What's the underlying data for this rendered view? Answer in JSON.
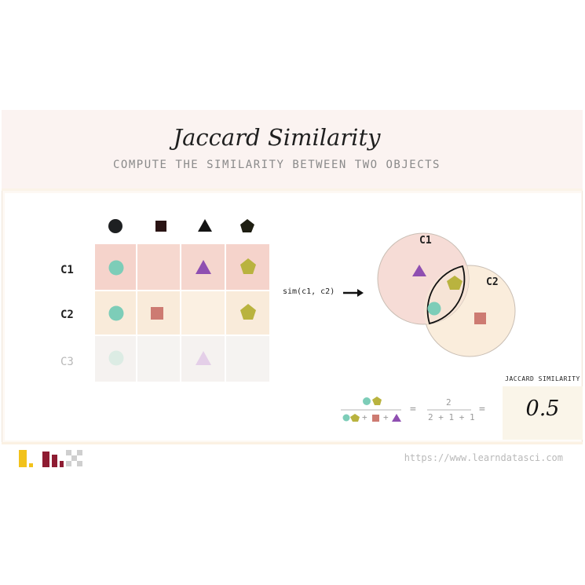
{
  "header": {
    "title": "Jaccard Similarity",
    "subtitle": "COMPUTE THE SIMILARITY BETWEEN TWO OBJECTS"
  },
  "table": {
    "column_symbols": [
      "circle-icon",
      "square-icon",
      "triangle-icon",
      "pentagon-icon"
    ],
    "rows": [
      {
        "label": "C1",
        "items": [
          "circle",
          "",
          "triangle",
          "pentagon"
        ]
      },
      {
        "label": "C2",
        "items": [
          "circle",
          "square",
          "",
          "pentagon"
        ]
      },
      {
        "label": "C3",
        "items": [
          "circle",
          "",
          "triangle",
          ""
        ]
      }
    ]
  },
  "similarity": {
    "expression": "sim(c1, c2)"
  },
  "venn": {
    "left_label": "C1",
    "right_label": "C2"
  },
  "formula": {
    "equals": "=",
    "plus": "+",
    "numerator_value": "2",
    "denominator_value": "2 + 1 + 1"
  },
  "result": {
    "label": "JACCARD SIMILARITY",
    "value": "0.5"
  },
  "footer": {
    "url": "https://www.learndatasci.com"
  },
  "colors": {
    "circle": "#7dcdb8",
    "square": "#cd7b72",
    "triangle": "#8f4fb1",
    "pentagon": "#b9b33f",
    "row_c1": "#f6d7cf",
    "row_c2": "#faeddc",
    "row_c3": "#f6f3f1"
  }
}
